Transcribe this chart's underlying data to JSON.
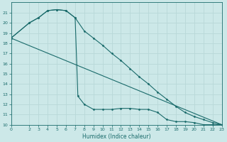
{
  "xlabel": "Humidex (Indice chaleur)",
  "background_color": "#cce8e8",
  "grid_color": "#b8d8d8",
  "line_color": "#1a6b6b",
  "xlim": [
    0,
    23
  ],
  "ylim": [
    10,
    22
  ],
  "yticks": [
    10,
    11,
    12,
    13,
    14,
    15,
    16,
    17,
    18,
    19,
    20,
    21
  ],
  "xticks": [
    0,
    2,
    3,
    4,
    5,
    6,
    7,
    8,
    9,
    10,
    11,
    12,
    13,
    14,
    15,
    16,
    17,
    18,
    19,
    20,
    21,
    22,
    23
  ],
  "line1_x": [
    0,
    2,
    3,
    4,
    5,
    6,
    7,
    7.3,
    8,
    9,
    10,
    11,
    12,
    13,
    14,
    15,
    16,
    17,
    18,
    19,
    20,
    21,
    22,
    23
  ],
  "line1_y": [
    18.5,
    20.0,
    20.5,
    21.2,
    21.3,
    21.2,
    20.5,
    12.8,
    12.0,
    11.5,
    11.5,
    11.5,
    11.6,
    11.6,
    11.5,
    11.5,
    11.2,
    10.5,
    10.3,
    10.3,
    10.2,
    10.0,
    10.0,
    10.0
  ],
  "line1_markers_x": [
    2,
    3,
    4,
    5,
    6,
    7,
    8,
    9,
    10,
    11,
    12,
    13,
    14,
    15,
    16,
    17,
    18,
    19,
    20,
    21,
    22,
    23
  ],
  "line1_markers_y": [
    20.0,
    20.5,
    21.2,
    21.3,
    21.2,
    20.5,
    12.0,
    11.5,
    11.5,
    11.5,
    11.6,
    11.6,
    11.5,
    11.5,
    11.2,
    10.5,
    10.3,
    10.3,
    10.2,
    10.0,
    10.0,
    10.0
  ],
  "line2_x": [
    0,
    2,
    3,
    4,
    5,
    6,
    7,
    8,
    9,
    10,
    11,
    12,
    13,
    14,
    15,
    16,
    17,
    18,
    19,
    20,
    21,
    22,
    23
  ],
  "line2_y": [
    18.5,
    20.0,
    20.5,
    21.2,
    21.3,
    21.2,
    20.5,
    19.2,
    18.5,
    17.8,
    17.0,
    16.3,
    15.5,
    14.7,
    14.0,
    13.2,
    12.5,
    11.8,
    11.2,
    10.8,
    10.5,
    10.2,
    10.0
  ],
  "line3_x": [
    0,
    23
  ],
  "line3_y": [
    18.5,
    10.0
  ]
}
